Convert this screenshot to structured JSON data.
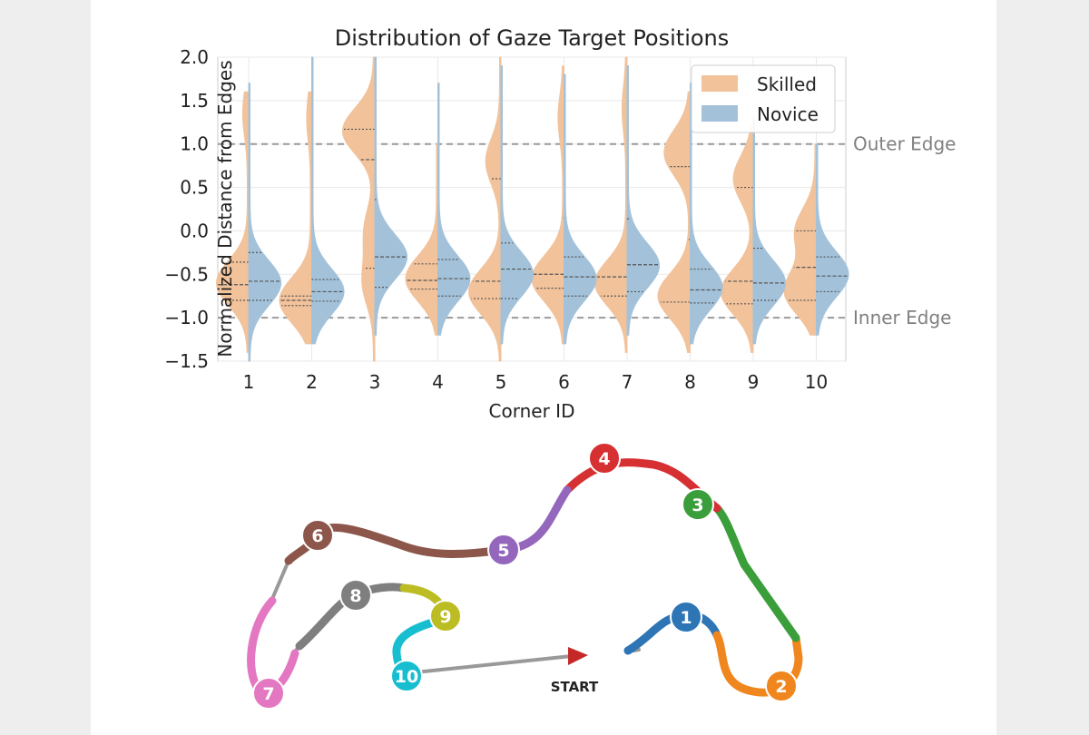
{
  "chart_data": {
    "type": "violin",
    "title": "Distribution of Gaze Target Positions",
    "xlabel": "Corner ID",
    "ylabel": "Normalized Distance from Edges",
    "ylim": [
      -1.5,
      2.0
    ],
    "yticks": [
      "2.0",
      "1.5",
      "1.0",
      "0.5",
      "0.0",
      "−0.5",
      "−1.0",
      "−1.5"
    ],
    "ytick_values": [
      2.0,
      1.5,
      1.0,
      0.5,
      0.0,
      -0.5,
      -1.0,
      -1.5
    ],
    "categories": [
      "1",
      "2",
      "3",
      "4",
      "5",
      "6",
      "7",
      "8",
      "9",
      "10"
    ],
    "grid": true,
    "legend_position": "top-right",
    "series": [
      {
        "name": "Skilled",
        "color": "#f2c29a",
        "side": "left",
        "distributions": [
          {
            "min": -1.4,
            "max": 1.6,
            "q1": -0.8,
            "median": -0.62,
            "q3": -0.36,
            "peaks": [
              [
                -0.6,
                1.0
              ],
              [
                1.35,
                0.15
              ]
            ]
          },
          {
            "min": -1.3,
            "max": 1.6,
            "q1": -0.86,
            "median": -0.8,
            "q3": -0.75,
            "peaks": [
              [
                -0.8,
                1.0
              ],
              [
                1.3,
                0.12
              ]
            ]
          },
          {
            "min": -1.5,
            "max": 2.0,
            "q1": -0.43,
            "median": 0.82,
            "q3": 1.17,
            "peaks": [
              [
                1.15,
                1.0
              ],
              [
                0.0,
                0.3
              ],
              [
                -0.6,
                0.35
              ]
            ]
          },
          {
            "min": -1.2,
            "max": 1.0,
            "q1": -0.67,
            "median": -0.57,
            "q3": -0.38,
            "peaks": [
              [
                -0.55,
                1.0
              ]
            ]
          },
          {
            "min": -1.5,
            "max": 2.0,
            "q1": -0.78,
            "median": -0.58,
            "q3": 0.6,
            "peaks": [
              [
                -0.7,
                1.0
              ],
              [
                0.8,
                0.45
              ]
            ]
          },
          {
            "min": -1.3,
            "max": 1.9,
            "q1": -0.66,
            "median": -0.5,
            "q3": 0.15,
            "peaks": [
              [
                -0.55,
                1.0
              ],
              [
                1.3,
                0.15
              ]
            ]
          },
          {
            "min": -1.4,
            "max": 2.0,
            "q1": -0.75,
            "median": -0.53,
            "q3": 0.12,
            "peaks": [
              [
                -0.6,
                1.0
              ],
              [
                1.4,
                0.12
              ]
            ]
          },
          {
            "min": -1.4,
            "max": 1.6,
            "q1": -0.82,
            "median": -0.1,
            "q3": 0.74,
            "peaks": [
              [
                0.9,
                0.8
              ],
              [
                -0.75,
                1.0
              ]
            ]
          },
          {
            "min": -1.4,
            "max": 1.2,
            "q1": -0.84,
            "median": -0.58,
            "q3": 0.5,
            "peaks": [
              [
                0.6,
                0.6
              ],
              [
                -0.7,
                1.0
              ]
            ]
          },
          {
            "min": -1.2,
            "max": 1.0,
            "q1": -0.8,
            "median": -0.42,
            "q3": 0.0,
            "peaks": [
              [
                -0.7,
                1.0
              ],
              [
                0.0,
                0.65
              ]
            ]
          }
        ]
      },
      {
        "name": "Novice",
        "color": "#a3c2da",
        "side": "right",
        "distributions": [
          {
            "min": -1.5,
            "max": 1.7,
            "q1": -0.8,
            "median": -0.58,
            "q3": -0.25,
            "peaks": [
              [
                -0.6,
                1.0
              ]
            ]
          },
          {
            "min": -1.3,
            "max": 2.0,
            "q1": -0.81,
            "median": -0.7,
            "q3": -0.56,
            "peaks": [
              [
                -0.7,
                1.0
              ]
            ]
          },
          {
            "min": -1.2,
            "max": 2.0,
            "q1": -0.65,
            "median": -0.3,
            "q3": 0.36,
            "peaks": [
              [
                -0.3,
                1.0
              ]
            ]
          },
          {
            "min": -1.2,
            "max": 1.7,
            "q1": -0.75,
            "median": -0.55,
            "q3": -0.33,
            "peaks": [
              [
                -0.55,
                1.0
              ]
            ]
          },
          {
            "min": -1.3,
            "max": 1.9,
            "q1": -0.78,
            "median": -0.44,
            "q3": -0.14,
            "peaks": [
              [
                -0.5,
                1.0
              ]
            ]
          },
          {
            "min": -1.3,
            "max": 1.8,
            "q1": -0.75,
            "median": -0.53,
            "q3": -0.3,
            "peaks": [
              [
                -0.55,
                1.0
              ]
            ]
          },
          {
            "min": -1.2,
            "max": 1.9,
            "q1": -0.7,
            "median": -0.39,
            "q3": 0.14,
            "peaks": [
              [
                -0.4,
                1.0
              ]
            ]
          },
          {
            "min": -1.3,
            "max": 1.7,
            "q1": -0.83,
            "median": -0.68,
            "q3": -0.44,
            "peaks": [
              [
                -0.65,
                1.0
              ]
            ]
          },
          {
            "min": -1.3,
            "max": 1.3,
            "q1": -0.8,
            "median": -0.6,
            "q3": -0.2,
            "peaks": [
              [
                -0.6,
                1.0
              ]
            ]
          },
          {
            "min": -1.2,
            "max": 1.0,
            "q1": -0.7,
            "median": -0.52,
            "q3": -0.3,
            "peaks": [
              [
                -0.5,
                1.0
              ]
            ]
          }
        ]
      }
    ],
    "reference_lines": [
      {
        "y": 1.0,
        "label": "Outer Edge"
      },
      {
        "y": -1.0,
        "label": "Inner Edge"
      }
    ]
  },
  "track_map": {
    "start_label": "START",
    "track_color": "#999999",
    "corners": [
      {
        "label": "1",
        "color": "#2e75b6"
      },
      {
        "label": "2",
        "color": "#f0861e"
      },
      {
        "label": "3",
        "color": "#3a9e3a"
      },
      {
        "label": "4",
        "color": "#d63033"
      },
      {
        "label": "5",
        "color": "#9467bd"
      },
      {
        "label": "6",
        "color": "#8c564b"
      },
      {
        "label": "7",
        "color": "#e377c2"
      },
      {
        "label": "8",
        "color": "#7f7f7f"
      },
      {
        "label": "9",
        "color": "#bcbd22"
      },
      {
        "label": "10",
        "color": "#17becf"
      }
    ]
  }
}
